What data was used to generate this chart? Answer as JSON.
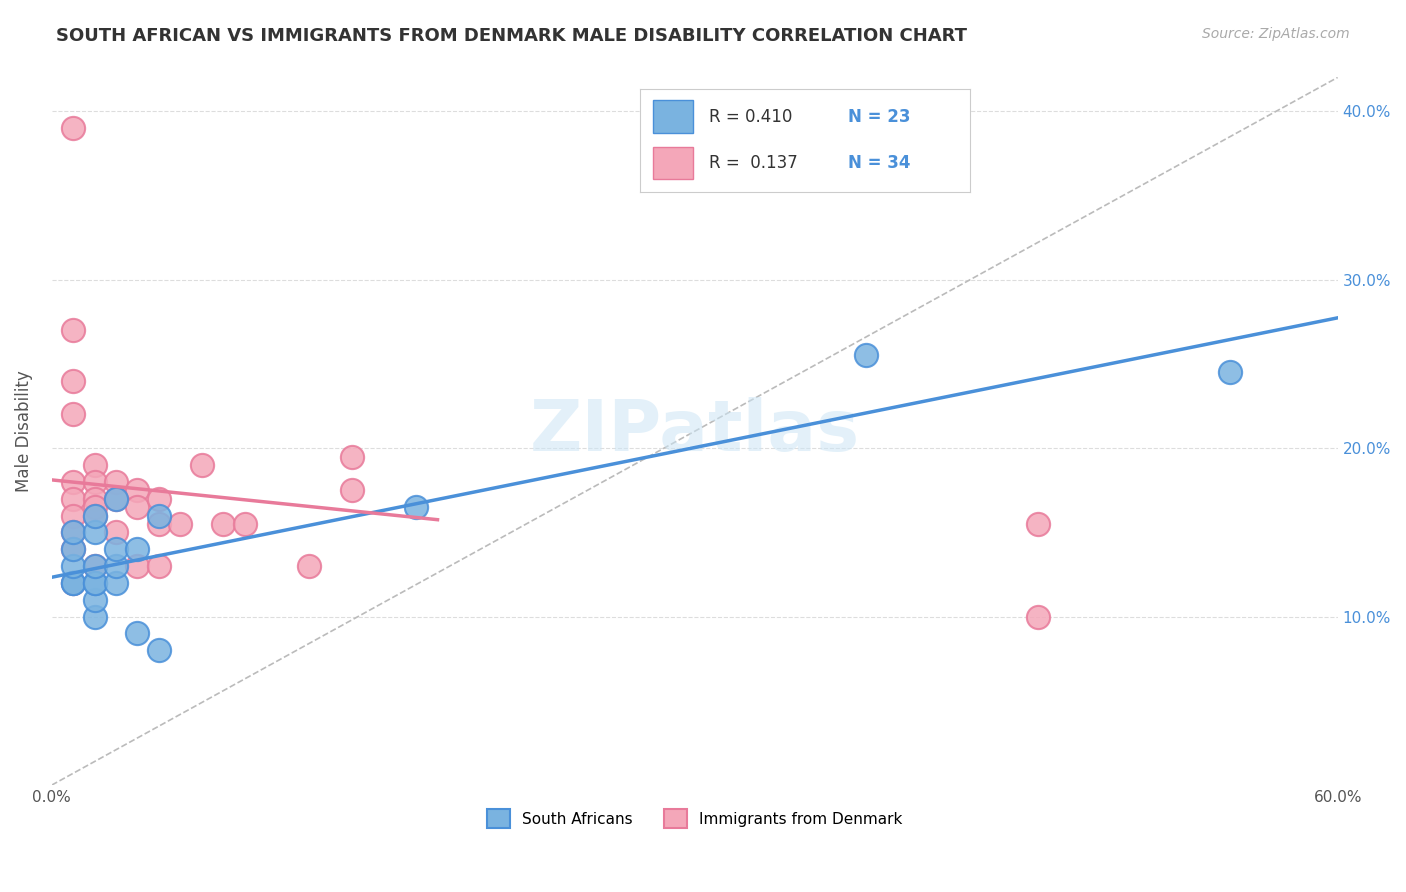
{
  "title": "SOUTH AFRICAN VS IMMIGRANTS FROM DENMARK MALE DISABILITY CORRELATION CHART",
  "source": "Source: ZipAtlas.com",
  "ylabel": "Male Disability",
  "xlim": [
    0.0,
    0.6
  ],
  "ylim": [
    0.0,
    0.42
  ],
  "xticks": [
    0.0,
    0.1,
    0.2,
    0.3,
    0.4,
    0.5,
    0.6
  ],
  "yticks": [
    0.0,
    0.1,
    0.2,
    0.3,
    0.4
  ],
  "yticklabels_right": [
    "10.0%",
    "20.0%",
    "30.0%",
    "40.0%"
  ],
  "background_color": "#ffffff",
  "grid_color": "#dddddd",
  "watermark": "ZIPatlas",
  "blue_R": 0.41,
  "blue_N": 23,
  "pink_R": 0.137,
  "pink_N": 34,
  "blue_color": "#7ab3e0",
  "pink_color": "#f4a7b9",
  "blue_line_color": "#4a90d9",
  "pink_line_color": "#e87a9a",
  "dashed_line_color": "#bbbbbb",
  "south_africans_x": [
    0.01,
    0.01,
    0.01,
    0.01,
    0.01,
    0.02,
    0.02,
    0.02,
    0.02,
    0.02,
    0.02,
    0.02,
    0.03,
    0.03,
    0.03,
    0.03,
    0.04,
    0.04,
    0.05,
    0.05,
    0.17,
    0.38,
    0.55
  ],
  "south_africans_y": [
    0.12,
    0.12,
    0.13,
    0.14,
    0.15,
    0.1,
    0.11,
    0.12,
    0.12,
    0.13,
    0.15,
    0.16,
    0.12,
    0.13,
    0.14,
    0.17,
    0.09,
    0.14,
    0.08,
    0.16,
    0.165,
    0.255,
    0.245
  ],
  "denmark_x": [
    0.01,
    0.01,
    0.01,
    0.01,
    0.01,
    0.01,
    0.01,
    0.01,
    0.01,
    0.01,
    0.02,
    0.02,
    0.02,
    0.02,
    0.02,
    0.02,
    0.03,
    0.03,
    0.03,
    0.04,
    0.04,
    0.04,
    0.05,
    0.05,
    0.05,
    0.06,
    0.07,
    0.08,
    0.09,
    0.12,
    0.14,
    0.14,
    0.46,
    0.46
  ],
  "denmark_y": [
    0.39,
    0.27,
    0.24,
    0.22,
    0.18,
    0.17,
    0.16,
    0.15,
    0.14,
    0.12,
    0.19,
    0.18,
    0.17,
    0.165,
    0.16,
    0.13,
    0.18,
    0.17,
    0.15,
    0.175,
    0.165,
    0.13,
    0.17,
    0.155,
    0.13,
    0.155,
    0.19,
    0.155,
    0.155,
    0.13,
    0.195,
    0.175,
    0.155,
    0.1
  ]
}
